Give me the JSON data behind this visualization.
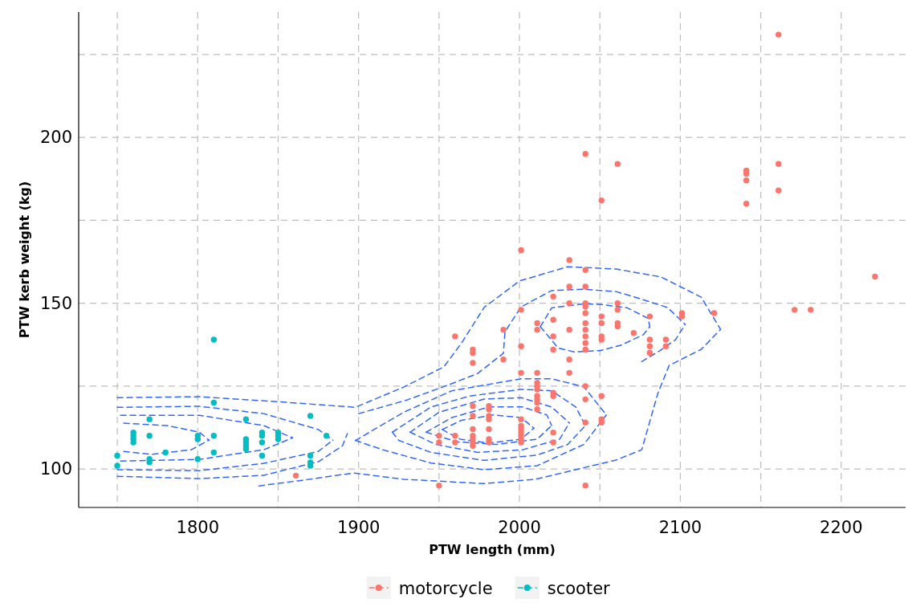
{
  "chart_data": {
    "type": "scatter",
    "xlabel": "PTW length (mm)",
    "ylabel": "PTW kerb weight (kg)",
    "xlim": [
      1726,
      2240
    ],
    "ylim": [
      88.4,
      237.8
    ],
    "xticks": [
      {
        "value": 1750,
        "label": null
      },
      1800,
      {
        "value": 1850,
        "label": null
      },
      1900,
      {
        "value": 1950,
        "label": null
      },
      2000,
      {
        "value": 2050,
        "label": null
      },
      2100,
      {
        "value": 2150,
        "label": null
      },
      2200
    ],
    "yticks": [
      100,
      {
        "value": 125,
        "label": null
      },
      150,
      {
        "value": 175,
        "label": null
      },
      200,
      {
        "value": 225,
        "label": null
      }
    ],
    "grid": true,
    "legend": "bottom",
    "marker": "circle",
    "series": [
      {
        "type": "line",
        "color": "#3366ff",
        "line_style": "dashed",
        "marker": "none",
        "x": [
          1750,
          1801,
          1850,
          1898,
          1928,
          1953,
          1964,
          1978,
          2000,
          2030,
          2060,
          2088,
          2113,
          2125
        ],
        "values": [
          121.5,
          121.8,
          120.3,
          118.6,
          124.7,
          130.8,
          138,
          148.7,
          156.7,
          161,
          160.3,
          157.9,
          151.8,
          142.1
        ]
      },
      {
        "type": "line",
        "color": "#3366ff",
        "line_style": "dashed",
        "marker": "none",
        "x": [
          1838,
          1865,
          1897,
          1928,
          1978,
          2010,
          2060,
          2076,
          2086,
          2093,
          2113,
          2125
        ],
        "values": [
          94.9,
          96.6,
          98.8,
          96.9,
          95.6,
          96.9,
          102.7,
          105.8,
          122.8,
          131.2,
          136.1,
          142.1
        ]
      },
      {
        "type": "line",
        "color": "#3366ff",
        "line_style": "dashed",
        "marker": "none",
        "x": [
          1750,
          1801,
          1841,
          1875,
          1890,
          1893
        ],
        "values": [
          97.8,
          97.1,
          98.1,
          102.2,
          107,
          110.7
        ]
      },
      {
        "type": "line",
        "color": "#3366ff",
        "line_style": "dashed",
        "marker": "none",
        "x": [
          1750,
          1801,
          1841,
          1875,
          1884
        ],
        "values": [
          118.6,
          118.9,
          116.7,
          111.9,
          108.7
        ]
      },
      {
        "type": "line",
        "color": "#3366ff",
        "line_style": "dashed",
        "marker": "none",
        "x": [
          1750,
          1801,
          1841,
          1875,
          1884
        ],
        "values": [
          99.8,
          99.5,
          101.7,
          105.3,
          108.7
        ]
      },
      {
        "type": "line",
        "color": "#3366ff",
        "line_style": "dashed",
        "marker": "none",
        "x": [
          1752,
          1801,
          1841,
          1859
        ],
        "values": [
          116.2,
          116.2,
          113.1,
          109.4
        ]
      },
      {
        "type": "line",
        "color": "#3366ff",
        "line_style": "dashed",
        "marker": "none",
        "x": [
          1752,
          1801,
          1841,
          1859
        ],
        "values": [
          102.4,
          102.9,
          105.8,
          109.4
        ]
      },
      {
        "type": "line",
        "color": "#3366ff",
        "line_style": "dashed",
        "marker": "none",
        "x": [
          1754,
          1781,
          1801,
          1807
        ],
        "values": [
          113.8,
          113.1,
          111.1,
          108.7
        ]
      },
      {
        "type": "line",
        "color": "#3366ff",
        "line_style": "dashed",
        "marker": "none",
        "x": [
          1754,
          1771,
          1796,
          1807
        ],
        "values": [
          105.3,
          104.4,
          105.8,
          108.7
        ]
      },
      {
        "type": "line",
        "color": "#3366ff",
        "line_style": "dashed",
        "marker": "none",
        "x": [
          1898,
          1928,
          1958,
          2001,
          2020,
          2040,
          2054
        ],
        "values": [
          108.6,
          117.1,
          123.6,
          127.2,
          127.2,
          124.8,
          116.3
        ]
      },
      {
        "type": "line",
        "color": "#3366ff",
        "line_style": "dashed",
        "marker": "none",
        "x": [
          1898,
          1915,
          1945,
          1978,
          2011,
          2040,
          2054
        ],
        "values": [
          108.6,
          105.8,
          101.8,
          99.8,
          101,
          107.4,
          116.3
        ]
      },
      {
        "type": "line",
        "color": "#3366ff",
        "line_style": "dashed",
        "marker": "none",
        "x": [
          1921,
          1945,
          1969,
          2001,
          2020,
          2035,
          2041
        ],
        "values": [
          111.1,
          118.7,
          122,
          124,
          123.6,
          118.7,
          113.1
        ]
      },
      {
        "type": "line",
        "color": "#3366ff",
        "line_style": "dashed",
        "marker": "none",
        "x": [
          1921,
          1925,
          1945,
          1978,
          2011,
          2030,
          2041
        ],
        "values": [
          111.1,
          108.6,
          105,
          102.6,
          104.2,
          107.4,
          113.1
        ]
      },
      {
        "type": "line",
        "color": "#3366ff",
        "line_style": "dashed",
        "marker": "none",
        "x": [
          1932,
          1950,
          1978,
          2001,
          2020,
          2031
        ],
        "values": [
          111.1,
          117.1,
          121.1,
          121.5,
          118.7,
          113.9
        ]
      },
      {
        "type": "line",
        "color": "#3366ff",
        "line_style": "dashed",
        "marker": "none",
        "x": [
          1932,
          1948,
          1974,
          2002,
          2025,
          2031
        ],
        "values": [
          111.1,
          107.4,
          105,
          105.8,
          109,
          113.9
        ]
      },
      {
        "type": "line",
        "color": "#3366ff",
        "line_style": "dashed",
        "marker": "none",
        "x": [
          1942,
          1958,
          1981,
          2002,
          2017,
          2020
        ],
        "values": [
          111.1,
          115.5,
          118.7,
          118.7,
          116.3,
          113.1
        ]
      },
      {
        "type": "line",
        "color": "#3366ff",
        "line_style": "dashed",
        "marker": "none",
        "x": [
          1942,
          1961,
          1986,
          2011,
          2020
        ],
        "values": [
          111.1,
          108.2,
          107.4,
          109,
          113.1
        ]
      },
      {
        "type": "line",
        "color": "#3366ff",
        "line_style": "dashed",
        "marker": "none",
        "x": [
          1952,
          1964,
          1984,
          2001,
          2009
        ],
        "values": [
          111.9,
          114.7,
          116.3,
          115.5,
          112.3
        ]
      },
      {
        "type": "line",
        "color": "#3366ff",
        "line_style": "dashed",
        "marker": "none",
        "x": [
          1952,
          1963,
          1981,
          2001,
          2009
        ],
        "values": [
          111.9,
          109,
          107.8,
          109,
          112.3
        ]
      },
      {
        "type": "line",
        "color": "#3366ff",
        "line_style": "dashed",
        "marker": "none",
        "x": [
          2013,
          2020,
          2040,
          2051,
          2067,
          2080,
          2081
        ],
        "values": [
          142.9,
          148.6,
          149.8,
          149.6,
          148.6,
          145.4,
          142.9
        ]
      },
      {
        "type": "line",
        "color": "#3366ff",
        "line_style": "dashed",
        "marker": "none",
        "x": [
          2013,
          2024,
          2034,
          2050,
          2063,
          2077,
          2081
        ],
        "values": [
          142.9,
          136.5,
          135.3,
          135.7,
          137.3,
          140.5,
          142.9
        ]
      },
      {
        "type": "line",
        "color": "#3366ff",
        "line_style": "dashed",
        "marker": "none",
        "x": [
          1900,
          1930,
          1955,
          1974,
          1990,
          1991,
          2001,
          2020,
          2040,
          2060,
          2072,
          2092,
          2103
        ],
        "values": [
          116.7,
          120.8,
          125.2,
          128.8,
          134.9,
          141.4,
          148.9,
          153.8,
          154.2,
          153.5,
          151.8,
          148.7,
          143.6
        ]
      },
      {
        "type": "line",
        "color": "#3366ff",
        "line_style": "dashed",
        "marker": "none",
        "x": [
          2076,
          2087,
          2097,
          2103
        ],
        "values": [
          132.4,
          135.6,
          139,
          143.6
        ]
      },
      {
        "name": "motorcycle",
        "type": "scatter",
        "color": "#f8766d",
        "x": [
          1861,
          2001,
          2031,
          2041,
          2031,
          2041,
          2021,
          2041,
          2041,
          2001,
          2031,
          2061,
          2061,
          2041,
          2051,
          2051,
          2061,
          2061,
          2041,
          2041,
          2041,
          2041,
          2041,
          2051,
          2051,
          2011,
          2011,
          2021,
          2021,
          2021,
          2031,
          1990,
          1960,
          1971,
          1971,
          1971,
          1990,
          2001,
          2031,
          2031,
          2001,
          2011,
          2011,
          2011,
          2011,
          2011,
          2011,
          2011,
          2011,
          2021,
          2021,
          2041,
          2041,
          2041,
          2051,
          2051,
          2051,
          2021,
          2021,
          1950,
          1950,
          1960,
          1960,
          1971,
          1971,
          1971,
          1971,
          1971,
          1971,
          1971,
          1981,
          1981,
          1981,
          1981,
          1981,
          1981,
          1981,
          2001,
          2001,
          2001,
          2001,
          2001,
          2001,
          2001,
          1950,
          2041,
          2041,
          2061,
          2051,
          2141,
          2141,
          2141,
          2141,
          2161,
          2161,
          2221,
          2171,
          2181,
          2161,
          2071,
          2081,
          2081,
          2081,
          2081,
          2091,
          2091,
          2101,
          2101,
          2121
        ],
        "values": [
          98,
          166,
          163,
          160,
          155,
          155,
          152,
          150,
          149,
          148,
          150,
          150,
          148,
          147,
          146,
          144,
          144,
          143,
          144,
          142,
          140,
          138,
          136,
          140,
          139,
          144,
          142,
          145,
          140,
          136,
          142,
          142,
          140,
          136,
          135,
          132,
          133,
          137,
          133,
          129,
          129,
          129,
          126,
          125,
          124,
          122,
          121,
          120,
          118,
          123,
          122,
          125,
          121,
          114,
          122,
          115,
          114,
          111,
          108,
          110,
          108,
          110,
          108,
          119,
          116,
          112,
          110,
          109,
          108,
          107,
          119,
          118,
          116,
          115,
          112,
          109,
          108,
          115,
          113,
          112,
          111,
          110,
          109,
          108,
          95,
          95,
          195,
          192,
          181,
          190,
          189,
          187,
          180,
          192,
          184,
          158,
          148,
          148,
          231,
          141,
          146,
          139,
          137,
          135,
          139,
          137,
          147,
          146,
          147
        ]
      },
      {
        "name": "scooter",
        "type": "scatter",
        "color": "#00bfc4",
        "x": [
          1750,
          1750,
          1760,
          1760,
          1760,
          1760,
          1770,
          1770,
          1770,
          1770,
          1780,
          1800,
          1800,
          1800,
          1810,
          1810,
          1810,
          1810,
          1830,
          1830,
          1830,
          1830,
          1830,
          1840,
          1840,
          1840,
          1840,
          1850,
          1850,
          1850,
          1870,
          1870,
          1870,
          1870,
          1880
        ],
        "values": [
          104,
          101,
          111,
          110,
          109,
          108,
          115,
          110,
          103,
          102,
          105,
          110,
          109,
          103,
          139,
          120,
          110,
          105,
          115,
          109,
          108,
          107,
          106,
          111,
          110,
          108,
          104,
          111,
          110,
          109,
          116,
          104,
          102,
          101,
          110
        ]
      }
    ]
  }
}
